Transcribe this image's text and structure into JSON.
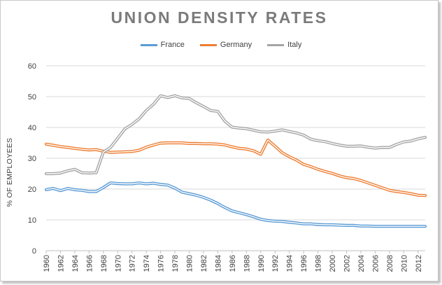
{
  "chart_data": {
    "type": "line",
    "title": "UNION DENSITY RATES",
    "xlabel": "",
    "ylabel": "% OF EMPLOYEES",
    "ylim": [
      0,
      60
    ],
    "yticks": [
      0,
      10,
      20,
      30,
      40,
      50,
      60
    ],
    "xlim": [
      1960,
      2013
    ],
    "xticks": [
      1960,
      1962,
      1964,
      1966,
      1968,
      1970,
      1972,
      1974,
      1976,
      1978,
      1980,
      1982,
      1984,
      1986,
      1988,
      1990,
      1992,
      1994,
      1996,
      1998,
      2000,
      2002,
      2004,
      2006,
      2008,
      2010,
      2012
    ],
    "grid": true,
    "legend_position": "top",
    "x": [
      1960,
      1961,
      1962,
      1963,
      1964,
      1965,
      1966,
      1967,
      1968,
      1969,
      1970,
      1971,
      1972,
      1973,
      1974,
      1975,
      1976,
      1977,
      1978,
      1979,
      1980,
      1981,
      1982,
      1983,
      1984,
      1985,
      1986,
      1987,
      1988,
      1989,
      1990,
      1991,
      1992,
      1993,
      1994,
      1995,
      1996,
      1997,
      1998,
      1999,
      2000,
      2001,
      2002,
      2003,
      2004,
      2005,
      2006,
      2007,
      2008,
      2009,
      2010,
      2011,
      2012,
      2013
    ],
    "series": [
      {
        "name": "France",
        "color": "#5b9bd5",
        "values": [
          19.8,
          20.2,
          19.5,
          20.2,
          19.8,
          19.6,
          19.2,
          19.2,
          20.5,
          22.0,
          21.8,
          21.7,
          21.7,
          22.0,
          21.7,
          21.9,
          21.5,
          21.3,
          20.3,
          19.0,
          18.5,
          18.0,
          17.3,
          16.4,
          15.3,
          14.0,
          12.9,
          12.3,
          11.7,
          11.0,
          10.2,
          9.8,
          9.6,
          9.5,
          9.2,
          9.0,
          8.7,
          8.7,
          8.5,
          8.4,
          8.4,
          8.3,
          8.2,
          8.2,
          8.0,
          8.0,
          7.9,
          7.9,
          7.9,
          7.9,
          7.9,
          7.9,
          7.9,
          7.9
        ]
      },
      {
        "name": "Germany",
        "color": "#ed7d31",
        "values": [
          34.6,
          34.2,
          33.8,
          33.5,
          33.2,
          32.9,
          32.7,
          32.8,
          32.3,
          31.9,
          32.0,
          32.1,
          32.2,
          32.6,
          33.6,
          34.3,
          34.9,
          35.0,
          35.0,
          35.0,
          34.8,
          34.8,
          34.7,
          34.7,
          34.6,
          34.3,
          33.7,
          33.2,
          33.0,
          32.4,
          31.3,
          35.9,
          33.9,
          31.8,
          30.5,
          29.4,
          28.0,
          27.3,
          26.4,
          25.7,
          25.1,
          24.3,
          23.7,
          23.4,
          22.8,
          22.0,
          21.2,
          20.4,
          19.6,
          19.2,
          18.9,
          18.5,
          18.0,
          17.9
        ]
      },
      {
        "name": "Italy",
        "color": "#a5a5a5",
        "values": [
          25.0,
          25.0,
          25.2,
          25.9,
          26.4,
          25.3,
          25.2,
          25.3,
          32.0,
          33.5,
          36.5,
          39.5,
          41.0,
          42.8,
          45.5,
          47.5,
          50.3,
          49.7,
          50.3,
          49.6,
          49.4,
          48.0,
          46.8,
          45.5,
          45.2,
          42.0,
          40.1,
          39.8,
          39.6,
          39.1,
          38.6,
          38.5,
          38.8,
          39.2,
          38.7,
          38.2,
          37.5,
          36.2,
          35.7,
          35.4,
          34.8,
          34.3,
          33.9,
          33.9,
          34.0,
          33.6,
          33.3,
          33.5,
          33.5,
          34.5,
          35.3,
          35.6,
          36.3,
          36.8
        ]
      }
    ]
  }
}
